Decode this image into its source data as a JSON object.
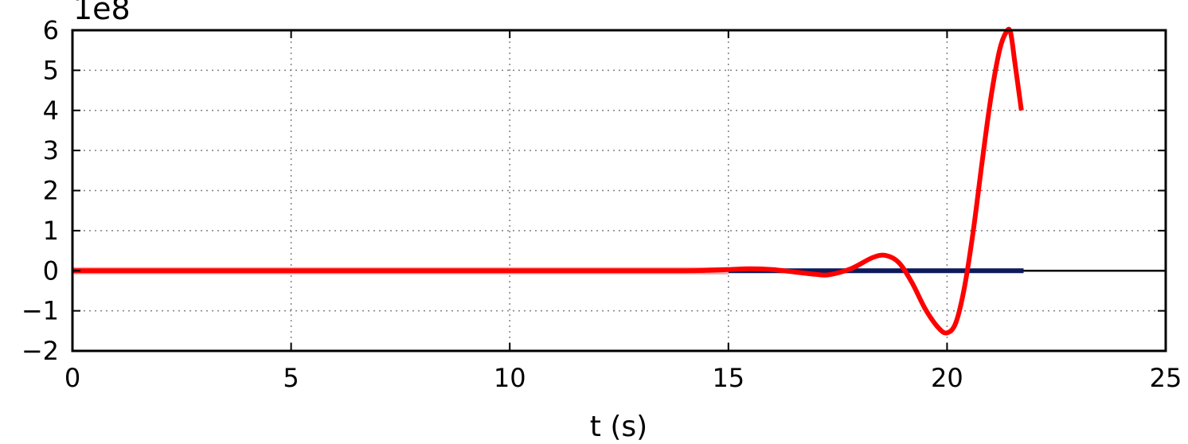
{
  "chart_data": {
    "type": "line",
    "xlabel": "t (s)",
    "ylabel": "",
    "offset_text": "1e8",
    "xlim": [
      0,
      25
    ],
    "ylim": [
      -2,
      6
    ],
    "x_ticks": [
      0,
      5,
      10,
      15,
      20,
      25
    ],
    "x_tick_labels": [
      "0",
      "5",
      "10",
      "15",
      "20",
      "25"
    ],
    "y_ticks": [
      -2,
      -1,
      0,
      1,
      2,
      3,
      4,
      5,
      6
    ],
    "y_tick_labels": [
      "−2",
      "−1",
      "0",
      "1",
      "2",
      "3",
      "4",
      "5",
      "6"
    ],
    "grid": true,
    "legend": "none",
    "series": [
      {
        "color": "#ff0000",
        "x": [
          0,
          2,
          4,
          6,
          8,
          10,
          12,
          13,
          14,
          14.5,
          15,
          15.5,
          16,
          16.5,
          17,
          17.3,
          17.8,
          18.3,
          18.6,
          18.9,
          19.2,
          19.5,
          19.8,
          20.0,
          20.2,
          20.4,
          20.6,
          20.8,
          21.0,
          21.2,
          21.35,
          21.45,
          21.55,
          21.7
        ],
        "y": [
          0,
          0,
          0,
          0,
          0,
          0,
          0,
          0,
          0,
          0.01,
          0.03,
          0.05,
          0.03,
          -0.03,
          -0.09,
          -0.1,
          0.05,
          0.33,
          0.38,
          0.2,
          -0.3,
          -0.95,
          -1.42,
          -1.55,
          -1.3,
          -0.4,
          1.0,
          2.7,
          4.3,
          5.5,
          5.95,
          5.95,
          5.2,
          4.0
        ]
      },
      {
        "color": "#0d1a5c",
        "x": [
          15.0,
          21.75
        ],
        "y": [
          0,
          0
        ]
      }
    ],
    "reference_line": {
      "y": 0,
      "color": "#000000"
    }
  }
}
